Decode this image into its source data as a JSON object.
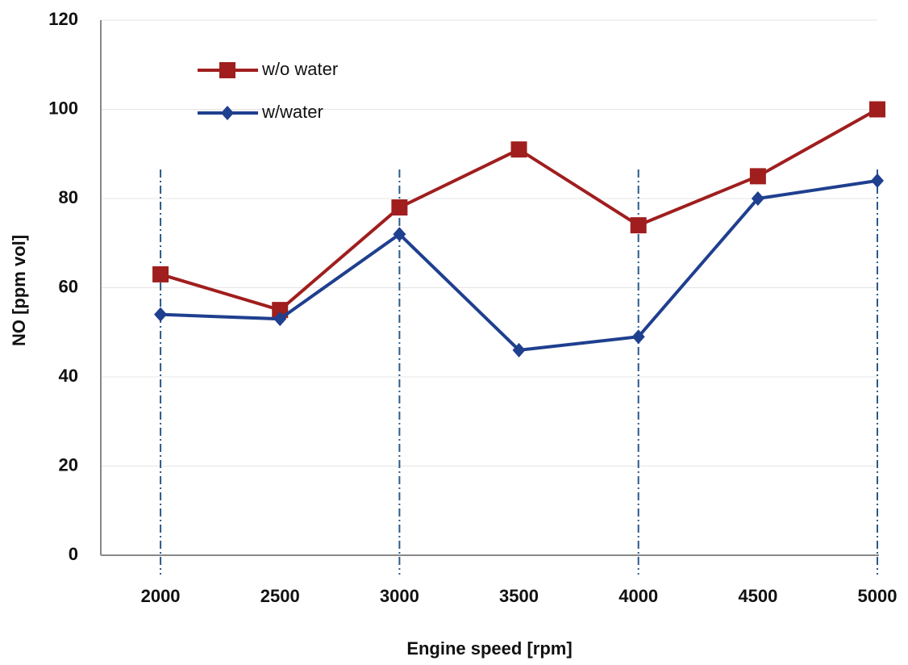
{
  "chart_data": {
    "type": "line",
    "x_label": "Engine speed [rpm]",
    "y_label": "NO [ppm vol]",
    "x": [
      2000,
      2500,
      3000,
      3500,
      4000,
      4500,
      5000
    ],
    "xlim": [
      1750,
      5000
    ],
    "xticks": [
      2000,
      2500,
      3000,
      3500,
      4000,
      4500,
      5000
    ],
    "ylim": [
      0,
      120
    ],
    "yticks": [
      0,
      20,
      40,
      60,
      80,
      100,
      120
    ],
    "grid": true,
    "legend": "upper left",
    "vlines": [
      2000,
      3000,
      4000,
      5000
    ],
    "series": [
      {
        "name": "w/o water",
        "color": "#a01e1e",
        "marker": "square",
        "values": [
          63,
          55,
          78,
          91,
          74,
          85,
          100
        ]
      },
      {
        "name": "w/water",
        "color": "#1f3f8f",
        "marker": "diamond",
        "values": [
          54,
          53,
          72,
          46,
          49,
          80,
          84
        ]
      }
    ]
  }
}
